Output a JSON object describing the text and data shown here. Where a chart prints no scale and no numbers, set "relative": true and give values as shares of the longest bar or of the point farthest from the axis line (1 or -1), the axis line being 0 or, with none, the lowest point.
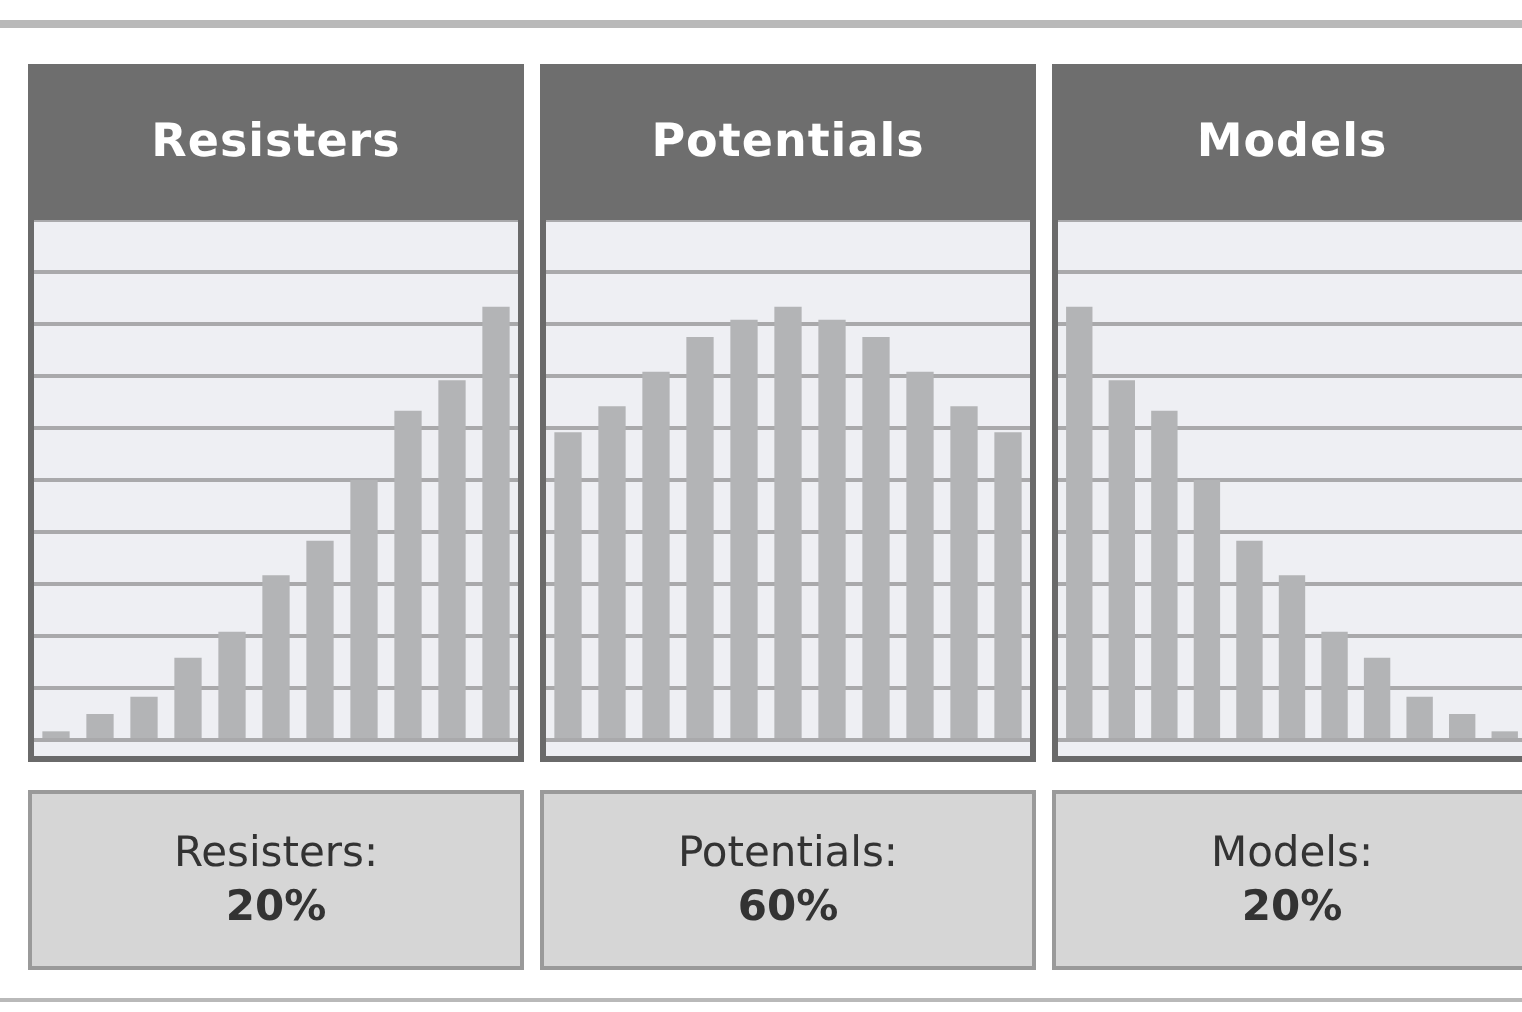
{
  "chart_data": [
    {
      "type": "bar",
      "title": "Resisters",
      "categories": [
        null,
        null,
        null,
        null,
        null,
        null,
        null,
        null,
        null,
        null,
        null
      ],
      "values": [
        0.02,
        0.06,
        0.1,
        0.19,
        0.25,
        0.38,
        0.46,
        0.6,
        0.76,
        0.83,
        1
      ],
      "color": "#b3b4b6",
      "relative": true,
      "grid": "y",
      "annotations": [
        "Resisters:",
        "20%"
      ]
    },
    {
      "type": "bar",
      "title": "Potentials",
      "categories": [
        null,
        null,
        null,
        null,
        null,
        null,
        null,
        null,
        null,
        null,
        null
      ],
      "values": [
        0.71,
        0.77,
        0.85,
        0.93,
        0.97,
        1,
        0.97,
        0.93,
        0.85,
        0.77,
        0.71
      ],
      "color": "#b3b4b6",
      "relative": true,
      "grid": "y",
      "annotations": [
        "Potentials:",
        "60%"
      ]
    },
    {
      "type": "bar",
      "title": "Models",
      "categories": [
        null,
        null,
        null,
        null,
        null,
        null,
        null,
        null,
        null,
        null,
        null
      ],
      "values": [
        1,
        0.83,
        0.76,
        0.6,
        0.46,
        0.38,
        0.25,
        0.19,
        0.1,
        0.06,
        0.02
      ],
      "color": "#b3b4b6",
      "relative": true,
      "grid": "y",
      "annotations": [
        "Models:",
        "20%"
      ]
    }
  ]
}
